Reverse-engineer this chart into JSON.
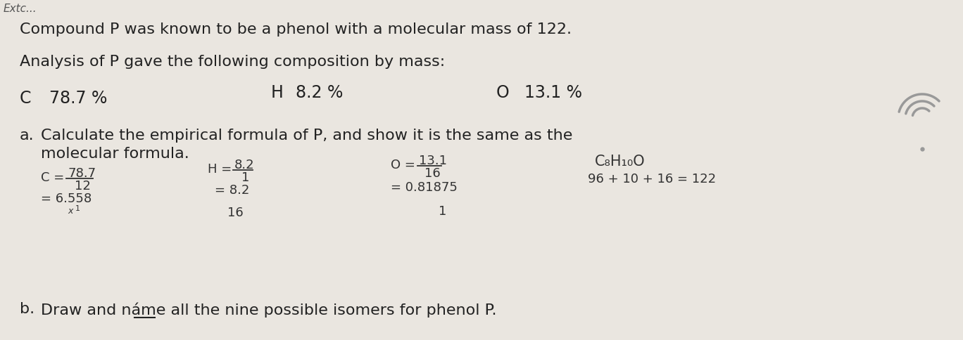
{
  "background_color": "#eae6e0",
  "line1": "Compound P was known to be a phenol with a molecular mass of 122.",
  "line2": "Analysis of P gave the following composition by mass:",
  "comp_C_label": "C",
  "comp_C_val": "78.7 %",
  "comp_H_label": "H",
  "comp_H_val": "8.2 %",
  "comp_O_label": "O",
  "comp_O_val": "13.1 %",
  "part_a_label": "a.",
  "part_a_text1": "Calculate the empirical formula of P, and show it is the same as the",
  "part_a_text2": "molecular formula.",
  "calc_C_prefix": "C = ",
  "calc_C_num": "78.7",
  "calc_C_den": "12",
  "calc_C_res": "= 6.558",
  "calc_H_prefix": "H = ",
  "calc_H_num": "8.2",
  "calc_H_den": "1",
  "calc_H_res": "= 8.2",
  "calc_H_extra": "16",
  "calc_O_prefix": "O = ",
  "calc_O_num": "13.1",
  "calc_O_den": "16",
  "calc_O_res": "= 0.81875",
  "calc_O_extra": "1",
  "formula_top": "C₈H₁₀O",
  "formula_bottom": "96 + 10 + 16 = 122",
  "part_b_label": "b.",
  "part_b_pre": "Draw and náme ",
  "part_b_all": "all",
  "part_b_post": " the nine possible isomers for phenol P.",
  "x_cutoff_text": "Extc...",
  "font_size_body": 16,
  "font_size_hw": 13,
  "text_color": "#222222",
  "hw_color": "#333333",
  "line_color": "#333333"
}
